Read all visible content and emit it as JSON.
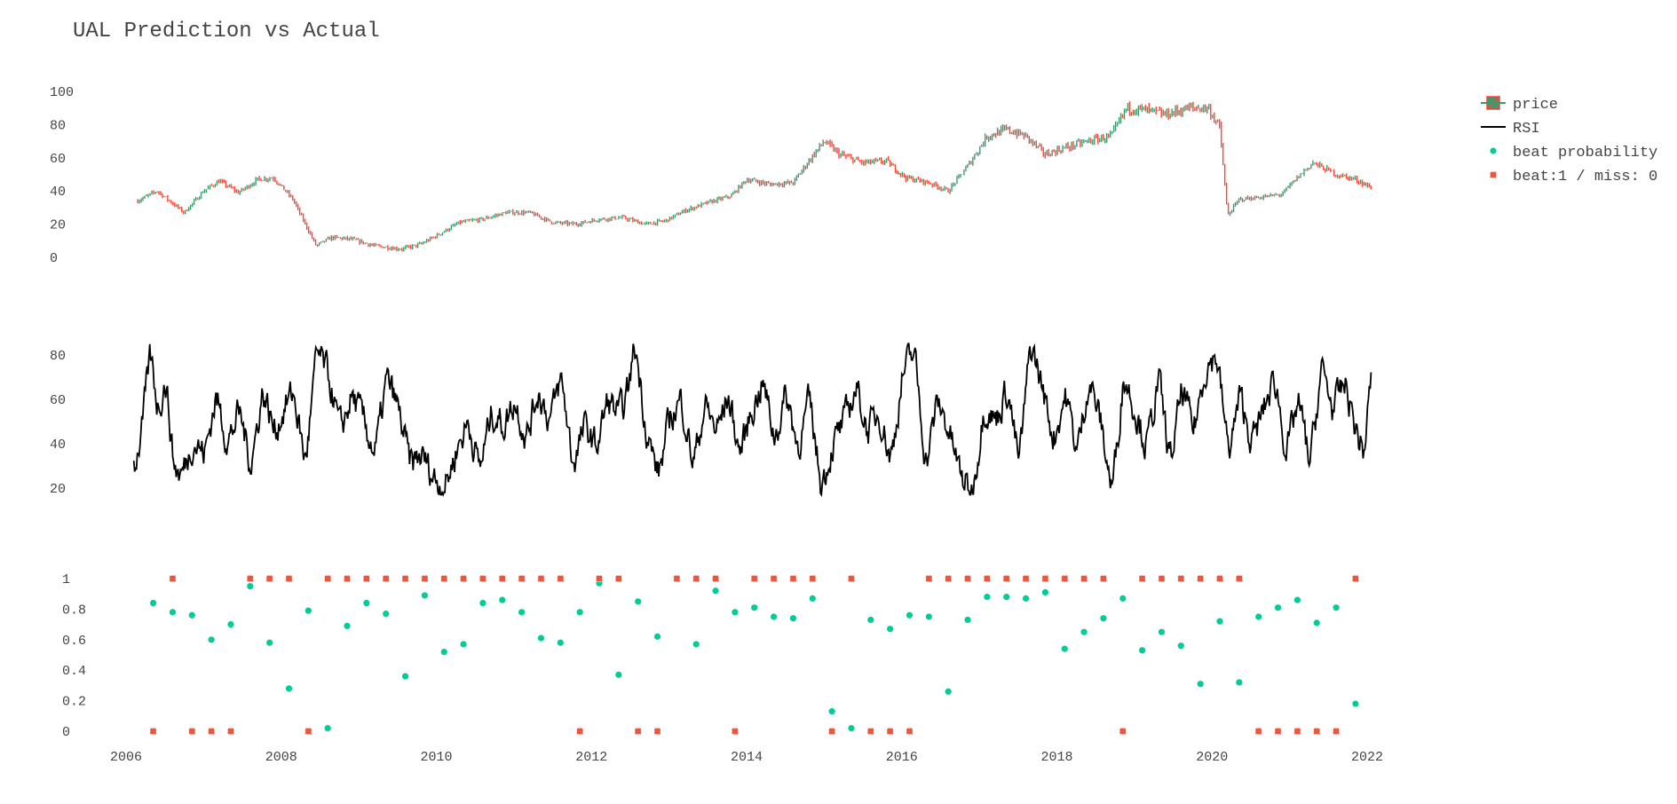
{
  "chart_data": {
    "type": "line",
    "title": "UAL Prediction vs Actual",
    "xlabel": "",
    "x_ticks": [
      "2006",
      "2008",
      "2010",
      "2012",
      "2014",
      "2016",
      "2018",
      "2020",
      "2022"
    ],
    "x_range": [
      2006.0,
      2022.0
    ],
    "legend": {
      "placement": "top-right",
      "entries": [
        "price",
        "RSI",
        "beat probability",
        "beat:1 / miss: 0"
      ]
    },
    "grid": false,
    "colors": {
      "increasing": "#3d9970",
      "decreasing": "#ff4136",
      "rsi": "#000000",
      "probability": "#00cc96",
      "beat": "#ef553b"
    },
    "panels": [
      {
        "name": "price",
        "type": "candlestick",
        "ylim": [
          0,
          100
        ],
        "y_ticks": [
          "0",
          "20",
          "40",
          "60",
          "80",
          "100"
        ],
        "series": [
          {
            "name": "price",
            "x": [
              2006.15,
              2006.4,
              2006.75,
              2007.0,
              2007.2,
              2007.45,
              2007.7,
              2007.9,
              2008.15,
              2008.45,
              2008.65,
              2008.9,
              2009.2,
              2009.55,
              2009.8,
              2010.0,
              2010.3,
              2010.6,
              2010.9,
              2011.2,
              2011.5,
              2011.8,
              2012.1,
              2012.4,
              2012.7,
              2012.95,
              2013.2,
              2013.5,
              2013.8,
              2014.0,
              2014.3,
              2014.6,
              2014.8,
              2015.0,
              2015.2,
              2015.5,
              2015.8,
              2016.05,
              2016.35,
              2016.6,
              2016.85,
              2017.1,
              2017.35,
              2017.6,
              2017.85,
              2018.1,
              2018.4,
              2018.7,
              2018.9,
              2019.1,
              2019.4,
              2019.7,
              2019.95,
              2020.1,
              2020.2,
              2020.35,
              2020.6,
              2020.9,
              2021.1,
              2021.3,
              2021.6,
              2021.85,
              2022.05
            ],
            "y": [
              34,
              40,
              27,
              40,
              46,
              39,
              47,
              48,
              35,
              7,
              12,
              11,
              7,
              5,
              8,
              13,
              21,
              23,
              27,
              27,
              21,
              20,
              23,
              24,
              20,
              22,
              28,
              33,
              37,
              47,
              44,
              45,
              58,
              70,
              62,
              57,
              58,
              48,
              45,
              40,
              55,
              73,
              77,
              73,
              62,
              66,
              70,
              73,
              90,
              89,
              86,
              90,
              90,
              78,
              25,
              35,
              36,
              38,
              48,
              57,
              50,
              47,
              42
            ]
          }
        ]
      },
      {
        "name": "RSI",
        "type": "line",
        "ylim": [
          16,
          88
        ],
        "y_ticks": [
          "20",
          "40",
          "60",
          "80"
        ],
        "series": [
          {
            "name": "RSI",
            "x": [
              2006.1,
              2006.2,
              2006.3,
              2006.4,
              2006.5,
              2006.6,
              2006.7,
              2006.85,
              2007.0,
              2007.15,
              2007.3,
              2007.45,
              2007.6,
              2007.75,
              2007.9,
              2008.05,
              2008.15,
              2008.3,
              2008.45,
              2008.6,
              2008.75,
              2008.9,
              2009.05,
              2009.2,
              2009.35,
              2009.5,
              2009.65,
              2009.8,
              2009.95,
              2010.1,
              2010.25,
              2010.4,
              2010.55,
              2010.7,
              2010.85,
              2011.0,
              2011.15,
              2011.3,
              2011.45,
              2011.6,
              2011.75,
              2011.9,
              2012.05,
              2012.2,
              2012.35,
              2012.45,
              2012.55,
              2012.7,
              2012.85,
              2013.0,
              2013.15,
              2013.3,
              2013.45,
              2013.6,
              2013.75,
              2013.9,
              2014.05,
              2014.2,
              2014.35,
              2014.5,
              2014.65,
              2014.8,
              2014.95,
              2015.1,
              2015.25,
              2015.4,
              2015.55,
              2015.7,
              2015.85,
              2016.0,
              2016.15,
              2016.3,
              2016.45,
              2016.6,
              2016.75,
              2016.9,
              2017.05,
              2017.2,
              2017.35,
              2017.5,
              2017.65,
              2017.8,
              2017.95,
              2018.1,
              2018.25,
              2018.4,
              2018.55,
              2018.7,
              2018.85,
              2019.0,
              2019.15,
              2019.3,
              2019.45,
              2019.6,
              2019.75,
              2019.9,
              2020.05,
              2020.2,
              2020.35,
              2020.5,
              2020.65,
              2020.8,
              2020.95,
              2021.1,
              2021.25,
              2021.4,
              2021.55,
              2021.7,
              2021.85,
              2021.95,
              2022.05
            ],
            "y": [
              30,
              48,
              82,
              55,
              70,
              30,
              25,
              42,
              35,
              62,
              40,
              55,
              30,
              65,
              45,
              58,
              63,
              30,
              82,
              70,
              45,
              62,
              50,
              35,
              70,
              55,
              30,
              35,
              25,
              20,
              38,
              50,
              28,
              55,
              48,
              60,
              42,
              65,
              50,
              70,
              30,
              48,
              38,
              60,
              52,
              62,
              86,
              45,
              25,
              52,
              60,
              30,
              58,
              45,
              62,
              35,
              55,
              68,
              42,
              63,
              38,
              60,
              20,
              40,
              50,
              66,
              45,
              55,
              32,
              72,
              82,
              30,
              60,
              45,
              25,
              17,
              58,
              50,
              66,
              30,
              86,
              65,
              42,
              63,
              35,
              70,
              50,
              18,
              72,
              55,
              38,
              70,
              30,
              65,
              45,
              75,
              80,
              35,
              62,
              40,
              55,
              70,
              35,
              60,
              30,
              75,
              55,
              68,
              45,
              35,
              76
            ]
          }
        ]
      },
      {
        "name": "beat",
        "type": "scatter",
        "ylim": [
          0,
          1
        ],
        "y_ticks": [
          "0",
          "0.2",
          "0.4",
          "0.6",
          "0.8",
          "1"
        ],
        "series": [
          {
            "name": "beat probability",
            "x": [
              2006.35,
              2006.6,
              2006.85,
              2007.1,
              2007.35,
              2007.6,
              2007.85,
              2008.1,
              2008.35,
              2008.6,
              2008.85,
              2009.1,
              2009.35,
              2009.6,
              2009.85,
              2010.1,
              2010.35,
              2010.6,
              2010.85,
              2011.1,
              2011.35,
              2011.6,
              2011.85,
              2012.1,
              2012.35,
              2012.6,
              2012.85,
              2013.35,
              2013.6,
              2013.85,
              2014.1,
              2014.35,
              2014.6,
              2014.85,
              2015.1,
              2015.35,
              2015.6,
              2015.85,
              2016.1,
              2016.35,
              2016.6,
              2016.85,
              2017.1,
              2017.35,
              2017.6,
              2017.85,
              2018.1,
              2018.35,
              2018.6,
              2018.85,
              2019.1,
              2019.35,
              2019.6,
              2019.85,
              2020.1,
              2020.35,
              2020.6,
              2020.85,
              2021.1,
              2021.35,
              2021.6,
              2021.85
            ],
            "y": [
              0.84,
              0.78,
              0.76,
              0.6,
              0.7,
              0.95,
              0.58,
              0.28,
              0.79,
              0.02,
              0.69,
              0.84,
              0.77,
              0.36,
              0.89,
              0.52,
              0.57,
              0.84,
              0.86,
              0.78,
              0.61,
              0.58,
              0.78,
              0.97,
              0.37,
              0.85,
              0.62,
              0.57,
              0.92,
              0.78,
              0.81,
              0.75,
              0.74,
              0.87,
              0.13,
              0.02,
              0.73,
              0.67,
              0.76,
              0.75,
              0.26,
              0.73,
              0.88,
              0.88,
              0.87,
              0.91,
              0.54,
              0.65,
              0.74,
              0.87,
              0.53,
              0.65,
              0.56,
              0.31,
              0.72,
              0.32,
              0.75,
              0.81,
              0.86,
              0.71,
              0.81,
              0.18
            ]
          },
          {
            "name": "beat:1 / miss: 0",
            "x": [
              2006.35,
              2006.6,
              2006.85,
              2007.1,
              2007.35,
              2007.6,
              2007.85,
              2008.1,
              2008.35,
              2008.6,
              2008.85,
              2009.1,
              2009.35,
              2009.6,
              2009.85,
              2010.1,
              2010.35,
              2010.6,
              2010.85,
              2011.1,
              2011.35,
              2011.6,
              2011.85,
              2012.1,
              2012.35,
              2012.6,
              2012.85,
              2013.1,
              2013.35,
              2013.6,
              2013.85,
              2014.1,
              2014.35,
              2014.6,
              2014.85,
              2015.1,
              2015.35,
              2015.6,
              2015.85,
              2016.1,
              2016.35,
              2016.6,
              2016.85,
              2017.1,
              2017.35,
              2017.6,
              2017.85,
              2018.1,
              2018.35,
              2018.6,
              2018.85,
              2019.1,
              2019.35,
              2019.6,
              2019.85,
              2020.1,
              2020.35,
              2020.6,
              2020.85,
              2021.1,
              2021.35,
              2021.6,
              2021.85
            ],
            "y": [
              0,
              1,
              0,
              0,
              0,
              1,
              1,
              1,
              0,
              1,
              1,
              1,
              1,
              1,
              1,
              1,
              1,
              1,
              1,
              1,
              1,
              1,
              0,
              1,
              1,
              0,
              0,
              1,
              1,
              1,
              0,
              1,
              1,
              1,
              1,
              0,
              1,
              0,
              0,
              0,
              1,
              1,
              1,
              1,
              1,
              1,
              1,
              1,
              1,
              1,
              0,
              1,
              1,
              1,
              1,
              1,
              1,
              0,
              0,
              0,
              0,
              0,
              1
            ]
          }
        ]
      }
    ]
  }
}
